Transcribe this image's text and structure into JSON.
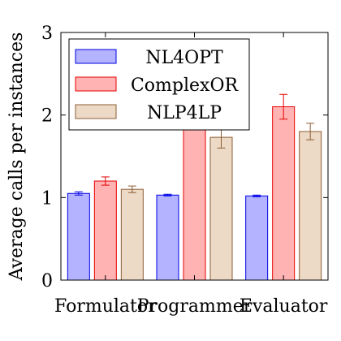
{
  "chart_data": {
    "type": "bar",
    "ylabel": "Average calls per instances",
    "xlabel": "",
    "ylim": [
      0,
      3
    ],
    "yticks": [
      0,
      1,
      2,
      3
    ],
    "grid": false,
    "legend_position": "top-left",
    "categories": [
      "Formulator",
      "Programmer",
      "Evaluator"
    ],
    "series": [
      {
        "name": "NL4OPT",
        "fill": "#b3b3ff",
        "stroke": "#0000e6",
        "values": [
          1.05,
          1.03,
          1.02
        ],
        "errors": [
          0.02,
          0.01,
          0.01
        ]
      },
      {
        "name": "ComplexOR",
        "fill": "#ffb3b3",
        "stroke": "#e60000",
        "values": [
          1.2,
          2.0,
          2.1
        ],
        "errors": [
          0.05,
          0.0,
          0.15
        ]
      },
      {
        "name": "NLP4LP",
        "fill": "#ecd9c6",
        "stroke": "#8c5e33",
        "values": [
          1.1,
          1.73,
          1.8
        ],
        "errors": [
          0.04,
          0.13,
          0.1
        ]
      }
    ]
  }
}
